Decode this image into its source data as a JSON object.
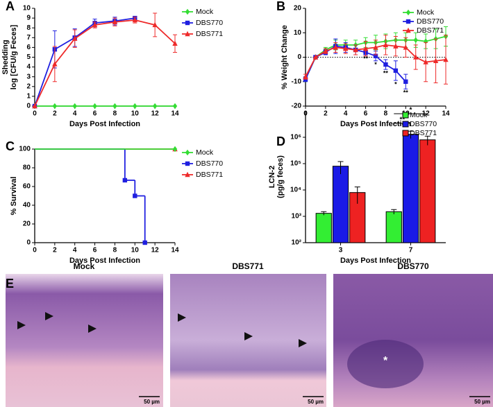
{
  "panel_labels": [
    "A",
    "B",
    "C",
    "D",
    "E"
  ],
  "chart_data": [
    {
      "type": "line",
      "ylabel": [
        "Shedding",
        "log [CFU/g Feces]"
      ],
      "xlabel": "Days Post Infection",
      "xlim": [
        0,
        14
      ],
      "xticks": [
        0,
        2,
        4,
        6,
        8,
        10,
        12,
        14
      ],
      "ylim": [
        0,
        10
      ],
      "yticks": [
        0,
        1,
        2,
        3,
        4,
        5,
        6,
        7,
        8,
        9,
        10
      ],
      "legend": "outside right",
      "series": [
        {
          "name": "Mock",
          "color": "#33dd33",
          "marker": "diamond",
          "x": [
            0,
            2,
            4,
            6,
            8,
            10,
            12,
            14
          ],
          "values": [
            0,
            0,
            0,
            0,
            0,
            0,
            0,
            0
          ]
        },
        {
          "name": "DBS770",
          "color": "#1f1fe0",
          "marker": "square",
          "x": [
            0,
            2,
            4,
            6,
            8,
            10
          ],
          "values": [
            0,
            5.8,
            7.0,
            8.5,
            8.7,
            9.0
          ],
          "errors": [
            0,
            1.9,
            0.9,
            0.4,
            0.4,
            0.1
          ]
        },
        {
          "name": "DBS771",
          "color": "#ee2a2a",
          "marker": "triangle",
          "x": [
            0,
            2,
            4,
            6,
            8,
            10,
            12,
            14
          ],
          "values": [
            0,
            4.3,
            6.9,
            8.3,
            8.6,
            8.8,
            8.3,
            6.4
          ],
          "errors": [
            0,
            1.8,
            0.9,
            0.3,
            0.4,
            0.3,
            1.2,
            0.9
          ]
        }
      ]
    },
    {
      "type": "line",
      "ylabel": [
        "% Weight Change"
      ],
      "xlabel": "Days Post Infection",
      "xlim": [
        0,
        14
      ],
      "xticks": [
        0,
        2,
        4,
        6,
        8,
        10,
        12,
        14
      ],
      "ylim": [
        -20,
        20
      ],
      "yticks": [
        -20,
        -10,
        0,
        10,
        20
      ],
      "hline": 0,
      "legend": "upper right",
      "series": [
        {
          "name": "Mock",
          "color": "#33dd33",
          "marker": "diamond",
          "x": [
            0,
            1,
            2,
            3,
            4,
            5,
            6,
            7,
            8,
            9,
            10,
            11,
            12,
            13,
            14
          ],
          "values": [
            -9,
            0,
            3,
            5,
            5,
            5,
            6,
            6,
            6.5,
            7,
            7,
            7,
            6.5,
            7.5,
            8.5
          ],
          "errors": [
            1,
            0,
            1,
            2,
            2,
            2,
            2,
            3,
            3,
            3,
            3,
            3,
            3,
            4,
            4
          ]
        },
        {
          "name": "DBS770",
          "color": "#1f1fe0",
          "marker": "square",
          "x": [
            0,
            1,
            2,
            3,
            4,
            5,
            6,
            7,
            8,
            9,
            10
          ],
          "values": [
            -9,
            0,
            2,
            4.5,
            4,
            3,
            2,
            0.5,
            -3,
            -5.5,
            -10
          ],
          "errors": [
            1,
            0,
            1,
            3,
            2,
            2,
            1,
            2,
            2,
            4,
            3
          ]
        },
        {
          "name": "DBS771",
          "color": "#ee2a2a",
          "marker": "triangle",
          "x": [
            0,
            1,
            2,
            3,
            4,
            5,
            6,
            7,
            8,
            9,
            10,
            11,
            12,
            13,
            14
          ],
          "values": [
            -8,
            0,
            2.5,
            4,
            3.5,
            3,
            3.5,
            4,
            5,
            4.5,
            4,
            0,
            -2,
            -1.5,
            -1
          ],
          "errors": [
            1,
            0,
            1,
            2,
            2,
            2,
            3,
            3,
            4,
            4,
            4,
            5,
            8,
            9,
            10
          ]
        }
      ],
      "annotations": [
        {
          "text": "**",
          "x": 6
        },
        {
          "text": "*",
          "x": 7
        },
        {
          "text": "**",
          "x": 8
        },
        {
          "text": "*",
          "x": 9
        },
        {
          "text": "**",
          "x": 10
        }
      ]
    },
    {
      "type": "step",
      "ylabel": [
        "% Survival"
      ],
      "xlabel": "Days Post Infection",
      "xlim": [
        0,
        14
      ],
      "xticks": [
        0,
        2,
        4,
        6,
        8,
        10,
        12,
        14
      ],
      "ylim": [
        0,
        100
      ],
      "yticks": [
        0,
        20,
        40,
        60,
        80,
        100
      ],
      "legend": "outside right",
      "series": [
        {
          "name": "Mock",
          "color": "#33dd33",
          "marker": "diamond",
          "x": [
            0,
            14
          ],
          "values": [
            100,
            100
          ]
        },
        {
          "name": "DBS770",
          "color": "#1f1fe0",
          "marker": "square",
          "x": [
            0,
            9,
            10,
            11
          ],
          "values": [
            100,
            66.7,
            50,
            0
          ]
        },
        {
          "name": "DBS771",
          "color": "#ee2a2a",
          "marker": "triangle",
          "x": [
            0,
            14
          ],
          "values": [
            100,
            100
          ]
        }
      ]
    },
    {
      "type": "bar",
      "ylabel": [
        "LCN-2",
        "(pg/g feces)"
      ],
      "xlabel": "Days Post Infection",
      "categories": [
        "3",
        "7"
      ],
      "log_scale": true,
      "ylim": [
        100,
        10000000
      ],
      "yticks": [
        {
          "value": 100,
          "label": "10²"
        },
        {
          "value": 1000,
          "label": "10³"
        },
        {
          "value": 10000,
          "label": "10⁴"
        },
        {
          "value": 100000,
          "label": "10⁵"
        },
        {
          "value": 1000000,
          "label": "10⁶"
        }
      ],
      "legend": "upper right",
      "series": [
        {
          "name": "Mock",
          "color": "#33ee33",
          "values": [
            1300,
            1500
          ],
          "errors": [
            200,
            300
          ]
        },
        {
          "name": "DBS770",
          "color": "#1a1ae6",
          "values": [
            80000,
            1300000
          ],
          "errors": [
            40000,
            400000
          ]
        },
        {
          "name": "DBS771",
          "color": "#ee2222",
          "values": [
            8000,
            800000
          ],
          "errors": [
            5000,
            300000
          ]
        }
      ],
      "annotations": [
        "**",
        "*"
      ]
    }
  ],
  "images": [
    {
      "title": "Mock",
      "scale_bar": "50 µm"
    },
    {
      "title": "DBS771",
      "scale_bar": "50 µm"
    },
    {
      "title": "DBS770",
      "scale_bar": "50 µm"
    }
  ]
}
